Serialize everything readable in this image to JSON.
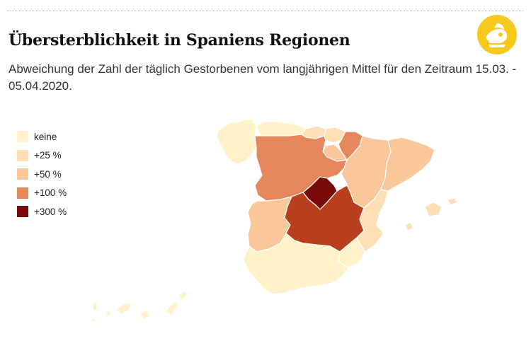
{
  "title": "Übersterblichkeit in Spaniens Regionen",
  "subtitle": "Abweichung der Zahl der täglich Gestorbenen vom langjährigen Mittel für den Zeitraum 15.03. - 05.04.2020.",
  "legend": [
    {
      "label": "keine",
      "color": "#fff1c9"
    },
    {
      "label": "+25 %",
      "color": "#fde0b5"
    },
    {
      "label": "+50 %",
      "color": "#f9c79a"
    },
    {
      "label": "+100 %",
      "color": "#e5875a"
    },
    {
      "label": "+300 %",
      "color": "#7a0a0a"
    }
  ],
  "regions": [
    {
      "name": "Galicia",
      "class": "keine"
    },
    {
      "name": "Asturias",
      "class": "keine"
    },
    {
      "name": "Cantabria",
      "class": "+25 %"
    },
    {
      "name": "País Vasco",
      "class": "+25 %"
    },
    {
      "name": "Navarra",
      "class": "+100 %"
    },
    {
      "name": "La Rioja",
      "class": "+50 %"
    },
    {
      "name": "Aragón",
      "class": "+50 %"
    },
    {
      "name": "Cataluña",
      "class": "+50 %"
    },
    {
      "name": "Castilla y León",
      "class": "+100 %"
    },
    {
      "name": "Madrid",
      "class": "+300 %"
    },
    {
      "name": "Castilla-La Mancha",
      "class": "> +100 %"
    },
    {
      "name": "Extremadura",
      "class": "+50 %"
    },
    {
      "name": "Comunidad Valenciana",
      "class": "+25 %"
    },
    {
      "name": "Murcia",
      "class": "keine"
    },
    {
      "name": "Andalucía",
      "class": "keine"
    },
    {
      "name": "Islas Baleares",
      "class": "+25 %"
    },
    {
      "name": "Canarias",
      "class": "keine"
    }
  ],
  "colors": {
    "keine": "#fff1c9",
    "p25": "#fde0b5",
    "p50": "#f9c79a",
    "p100": "#e5875a",
    "clm": "#b8401f",
    "p300": "#7a0a0a",
    "logo": "#f7c81e"
  }
}
